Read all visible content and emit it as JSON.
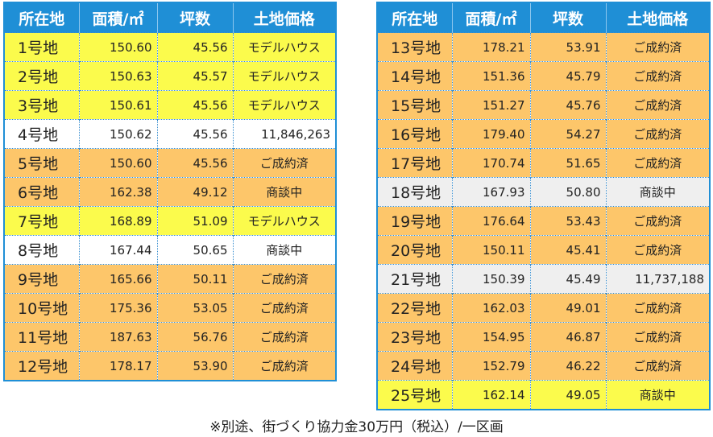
{
  "headers": [
    "所在地",
    "面積/㎡",
    "坪数",
    "土地価格"
  ],
  "left_rows": [
    {
      "lot": "1号地",
      "area": "150.60",
      "tsubo": "45.56",
      "price": "モデルハウス",
      "kind": "yellow",
      "align": "status"
    },
    {
      "lot": "2号地",
      "area": "150.63",
      "tsubo": "45.57",
      "price": "モデルハウス",
      "kind": "yellow",
      "align": "status"
    },
    {
      "lot": "3号地",
      "area": "150.61",
      "tsubo": "45.56",
      "price": "モデルハウス",
      "kind": "yellow",
      "align": "status"
    },
    {
      "lot": "4号地",
      "area": "150.62",
      "tsubo": "45.56",
      "price": "11,846,263",
      "kind": "white",
      "align": "price"
    },
    {
      "lot": "5号地",
      "area": "150.60",
      "tsubo": "45.56",
      "price": "ご成約済",
      "kind": "orange",
      "align": "status"
    },
    {
      "lot": "6号地",
      "area": "162.38",
      "tsubo": "49.12",
      "price": "商談中",
      "kind": "orange",
      "align": "status"
    },
    {
      "lot": "7号地",
      "area": "168.89",
      "tsubo": "51.09",
      "price": "モデルハウス",
      "kind": "yellow",
      "align": "status"
    },
    {
      "lot": "8号地",
      "area": "167.44",
      "tsubo": "50.65",
      "price": "商談中",
      "kind": "white",
      "align": "status"
    },
    {
      "lot": "9号地",
      "area": "165.66",
      "tsubo": "50.11",
      "price": "ご成約済",
      "kind": "orange",
      "align": "status"
    },
    {
      "lot": "10号地",
      "area": "175.36",
      "tsubo": "53.05",
      "price": "ご成約済",
      "kind": "orange",
      "align": "status"
    },
    {
      "lot": "11号地",
      "area": "187.63",
      "tsubo": "56.76",
      "price": "ご成約済",
      "kind": "orange",
      "align": "status"
    },
    {
      "lot": "12号地",
      "area": "178.17",
      "tsubo": "53.90",
      "price": "ご成約済",
      "kind": "orange",
      "align": "status"
    }
  ],
  "right_rows": [
    {
      "lot": "13号地",
      "area": "178.21",
      "tsubo": "53.91",
      "price": "ご成約済",
      "kind": "orange",
      "align": "status"
    },
    {
      "lot": "14号地",
      "area": "151.36",
      "tsubo": "45.79",
      "price": "ご成約済",
      "kind": "orange",
      "align": "status"
    },
    {
      "lot": "15号地",
      "area": "151.27",
      "tsubo": "45.76",
      "price": "ご成約済",
      "kind": "orange",
      "align": "status"
    },
    {
      "lot": "16号地",
      "area": "179.40",
      "tsubo": "54.27",
      "price": "ご成約済",
      "kind": "orange",
      "align": "status"
    },
    {
      "lot": "17号地",
      "area": "170.74",
      "tsubo": "51.65",
      "price": "ご成約済",
      "kind": "orange",
      "align": "status"
    },
    {
      "lot": "18号地",
      "area": "167.93",
      "tsubo": "50.80",
      "price": "商談中",
      "kind": "gray",
      "align": "status"
    },
    {
      "lot": "19号地",
      "area": "176.64",
      "tsubo": "53.43",
      "price": "ご成約済",
      "kind": "orange",
      "align": "status"
    },
    {
      "lot": "20号地",
      "area": "150.11",
      "tsubo": "45.41",
      "price": "ご成約済",
      "kind": "orange",
      "align": "status"
    },
    {
      "lot": "21号地",
      "area": "150.39",
      "tsubo": "45.49",
      "price": "11,737,188",
      "kind": "gray",
      "align": "price"
    },
    {
      "lot": "22号地",
      "area": "162.03",
      "tsubo": "49.01",
      "price": "ご成約済",
      "kind": "orange",
      "align": "status"
    },
    {
      "lot": "23号地",
      "area": "154.95",
      "tsubo": "46.87",
      "price": "ご成約済",
      "kind": "orange",
      "align": "status"
    },
    {
      "lot": "24号地",
      "area": "152.79",
      "tsubo": "46.22",
      "price": "ご成約済",
      "kind": "orange",
      "align": "status"
    },
    {
      "lot": "25号地",
      "area": "162.14",
      "tsubo": "49.05",
      "price": "商談中",
      "kind": "yellow",
      "align": "status"
    }
  ],
  "footnote": "※別途、街づくり協力金30万円（税込）/一区画",
  "colors": {
    "header": "#1f8fd6",
    "yellow": "#fbfb4c",
    "orange": "#fdc66a",
    "gray": "#efefef"
  }
}
